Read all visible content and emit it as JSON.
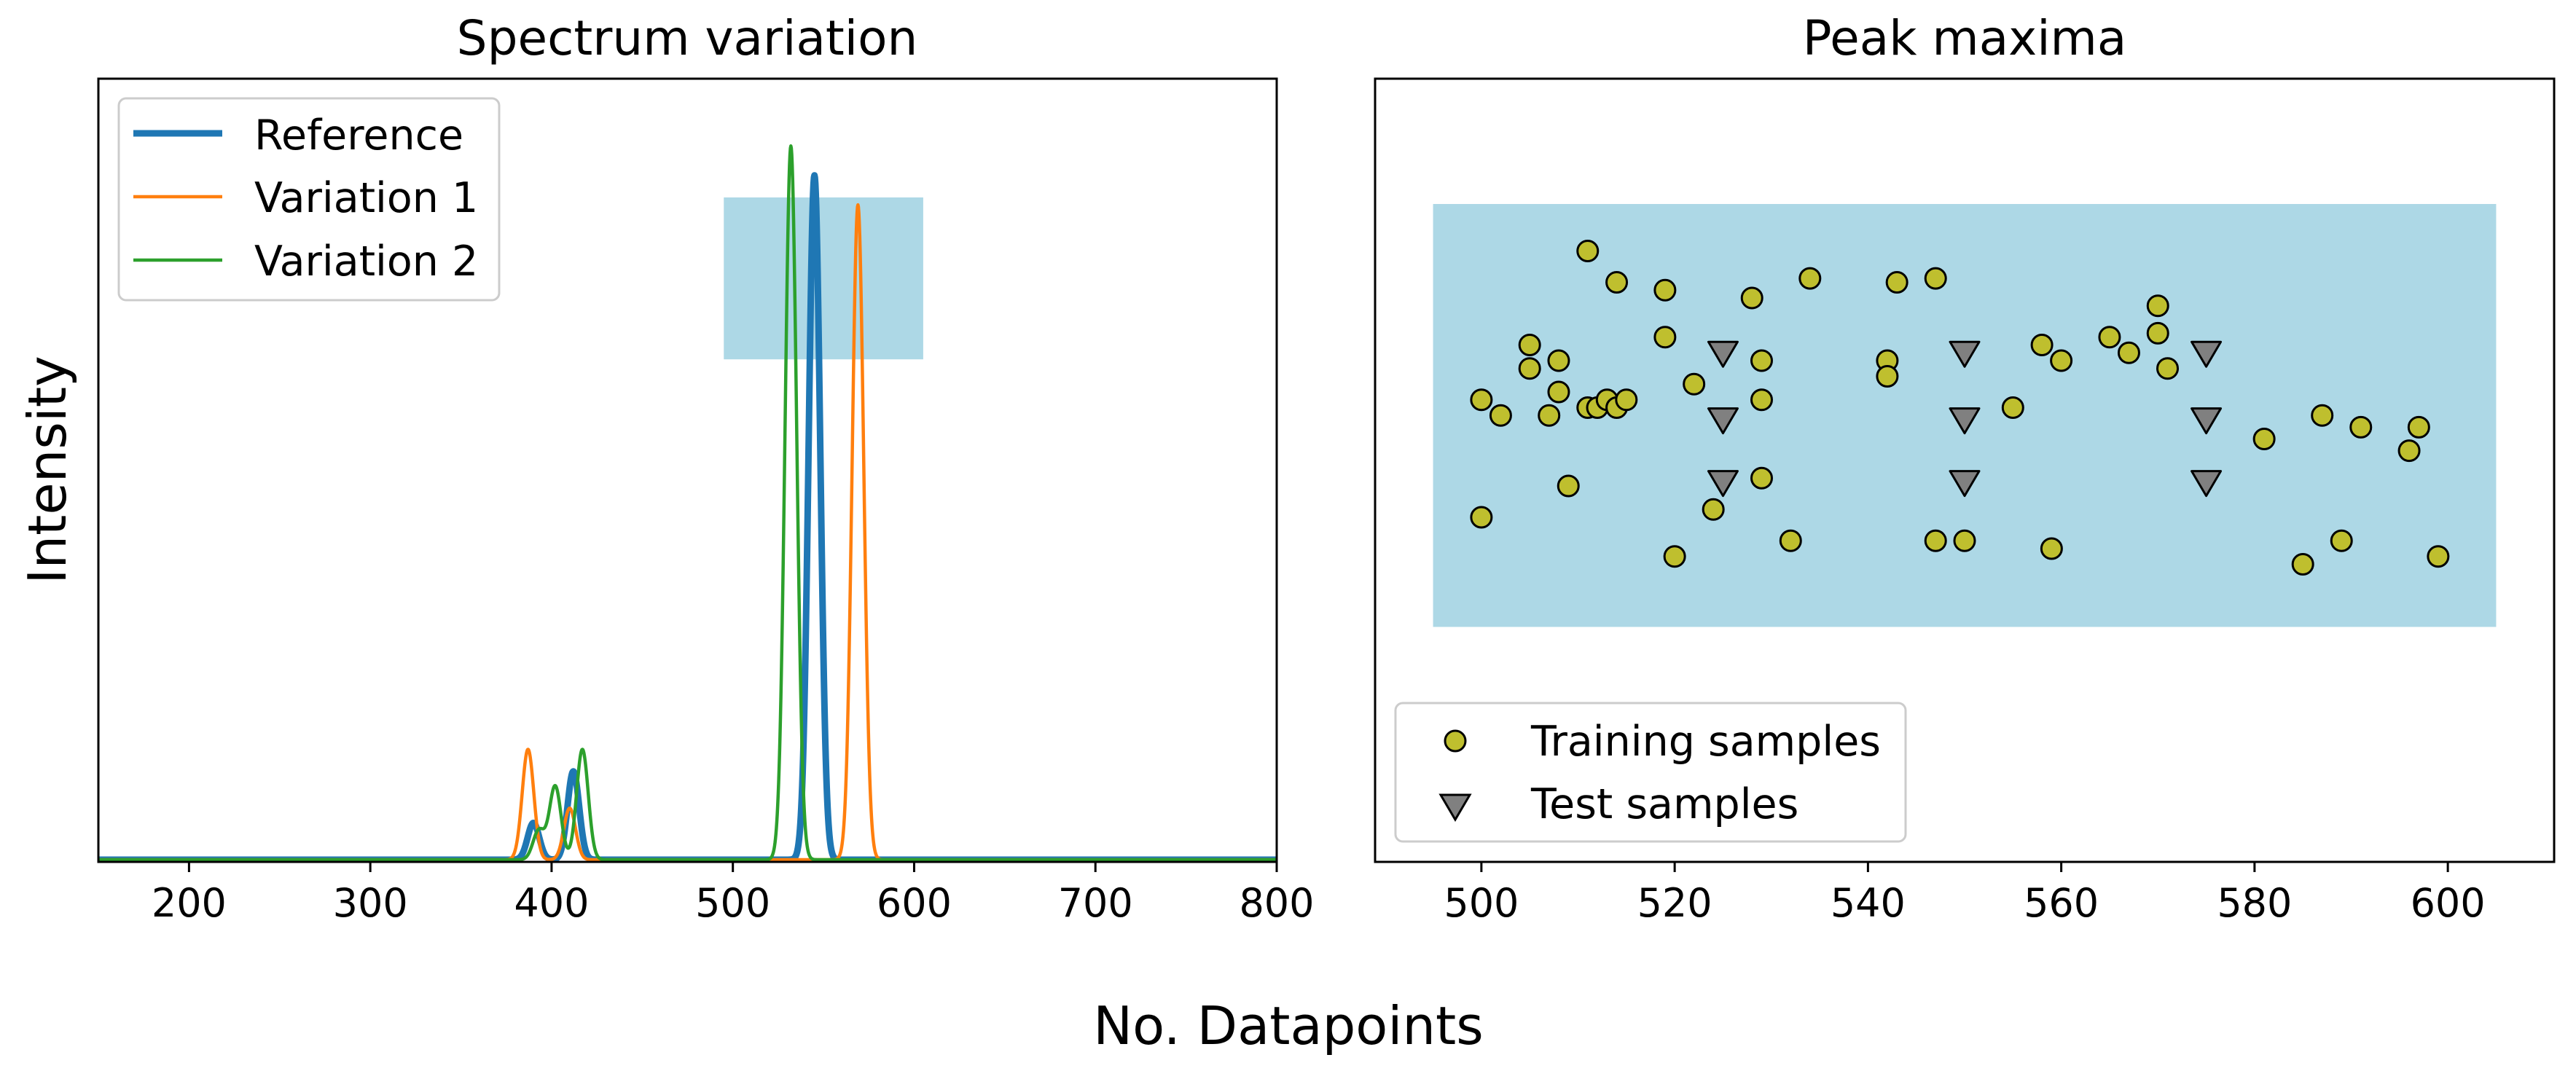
{
  "figure": {
    "ylabel": "Intensity",
    "xlabel": "No. Datapoints"
  },
  "chart_data": [
    {
      "type": "line",
      "title": "Spectrum variation",
      "xlim": [
        150,
        800
      ],
      "xticks": [
        200,
        300,
        400,
        500,
        600,
        700,
        800
      ],
      "y_ticks_shown": false,
      "legend_position": "upper-left",
      "highlight_region": {
        "x": [
          495,
          605
        ],
        "y": [
          0.68,
          0.9
        ]
      },
      "series": [
        {
          "name": "Reference",
          "color": "#1f77b4",
          "width": "thick",
          "peaks": [
            {
              "x": 390,
              "height": 0.05
            },
            {
              "x": 412,
              "height": 0.12
            },
            {
              "x": 545,
              "height": 0.93
            }
          ]
        },
        {
          "name": "Variation 1",
          "color": "#ff7f0e",
          "width": "thin",
          "peaks": [
            {
              "x": 387,
              "height": 0.15
            },
            {
              "x": 410,
              "height": 0.07
            },
            {
              "x": 569,
              "height": 0.89
            }
          ]
        },
        {
          "name": "Variation 2",
          "color": "#2ca02c",
          "width": "thin",
          "peaks": [
            {
              "x": 393,
              "height": 0.04
            },
            {
              "x": 402,
              "height": 0.1
            },
            {
              "x": 417,
              "height": 0.15
            },
            {
              "x": 532,
              "height": 0.97
            }
          ]
        }
      ]
    },
    {
      "type": "scatter",
      "title": "Peak maxima",
      "xlim": [
        489,
        611
      ],
      "ylim": [
        0,
        1
      ],
      "xticks": [
        500,
        520,
        540,
        560,
        580,
        600
      ],
      "y_ticks_shown": false,
      "legend_position": "lower-left",
      "highlight_region": {
        "x": [
          495,
          605
        ],
        "y": [
          0.3,
          0.84
        ]
      },
      "series": [
        {
          "name": "Training samples",
          "marker": "circle",
          "color": "#bfbf2e",
          "points": [
            [
              500,
              0.59
            ],
            [
              500,
              0.44
            ],
            [
              502,
              0.57
            ],
            [
              505,
              0.66
            ],
            [
              505,
              0.63
            ],
            [
              507,
              0.57
            ],
            [
              508,
              0.64
            ],
            [
              508,
              0.6
            ],
            [
              509,
              0.48
            ],
            [
              511,
              0.58
            ],
            [
              511,
              0.78
            ],
            [
              512,
              0.58
            ],
            [
              513,
              0.59
            ],
            [
              514,
              0.74
            ],
            [
              514,
              0.58
            ],
            [
              515,
              0.59
            ],
            [
              519,
              0.73
            ],
            [
              519,
              0.67
            ],
            [
              520,
              0.39
            ],
            [
              522,
              0.61
            ],
            [
              524,
              0.45
            ],
            [
              528,
              0.72
            ],
            [
              529,
              0.64
            ],
            [
              529,
              0.59
            ],
            [
              529,
              0.49
            ],
            [
              532,
              0.41
            ],
            [
              534,
              0.745
            ],
            [
              542,
              0.64
            ],
            [
              542,
              0.62
            ],
            [
              543,
              0.74
            ],
            [
              547,
              0.745
            ],
            [
              547,
              0.41
            ],
            [
              550,
              0.41
            ],
            [
              555,
              0.58
            ],
            [
              558,
              0.66
            ],
            [
              559,
              0.4
            ],
            [
              560,
              0.64
            ],
            [
              565,
              0.67
            ],
            [
              567,
              0.65
            ],
            [
              570,
              0.71
            ],
            [
              570,
              0.675
            ],
            [
              571,
              0.63
            ],
            [
              581,
              0.54
            ],
            [
              585,
              0.38
            ],
            [
              587,
              0.57
            ],
            [
              589,
              0.41
            ],
            [
              591,
              0.555
            ],
            [
              596,
              0.525
            ],
            [
              597,
              0.555
            ],
            [
              599,
              0.39
            ]
          ]
        },
        {
          "name": "Test samples",
          "marker": "triangle-down",
          "color": "#808080",
          "points": [
            [
              525,
              0.65
            ],
            [
              525,
              0.565
            ],
            [
              525,
              0.485
            ],
            [
              550,
              0.65
            ],
            [
              550,
              0.565
            ],
            [
              550,
              0.485
            ],
            [
              575,
              0.65
            ],
            [
              575,
              0.565
            ],
            [
              575,
              0.485
            ]
          ]
        }
      ]
    }
  ]
}
